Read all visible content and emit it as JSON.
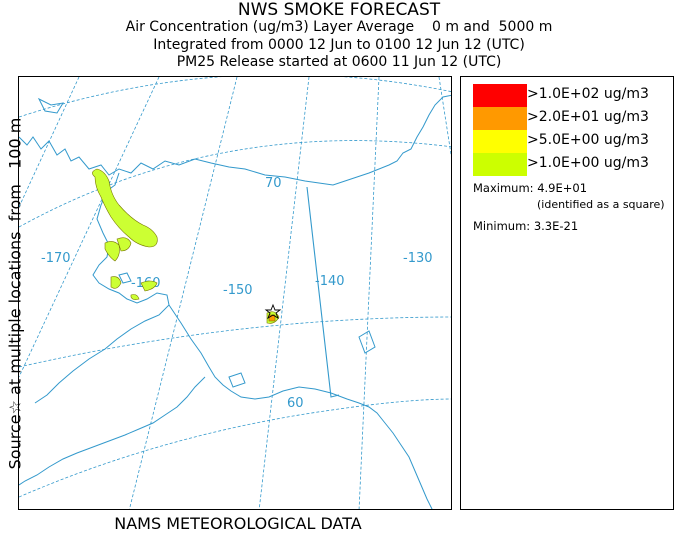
{
  "header": {
    "title": "NWS SMOKE FORECAST",
    "line1": "Air Concentration (ug/m3) Layer Average    0 m and  5000 m",
    "line2": "Integrated from 0000 12 Jun to 0100 12 Jun 12 (UTC)",
    "line3": "PM25 Release started at 0600 11 Jun 12 (UTC)"
  },
  "side_label": "Source☆ at multiple locations  from   100 m",
  "footer": "NAMS METEOROLOGICAL DATA",
  "legend": {
    "items": [
      {
        "label": ">1.0E+02 ug/m3",
        "color": "#ff0000"
      },
      {
        "label": ">2.0E+01 ug/m3",
        "color": "#ff9900"
      },
      {
        "label": ">5.0E+00 ug/m3",
        "color": "#ffff00"
      },
      {
        "label": ">1.0E+00 ug/m3",
        "color": "#ccff00"
      }
    ],
    "maximum": "Maximum: 4.9E+01",
    "max_note": "(identified as a square)",
    "minimum": "Minimum: 3.3E-21"
  },
  "map": {
    "graticule_labels": [
      "-170",
      "-160",
      "-150",
      "-140",
      "-130",
      "70",
      "60"
    ],
    "coastline_color": "#3399cc",
    "graticule_color": "#3399cc"
  }
}
